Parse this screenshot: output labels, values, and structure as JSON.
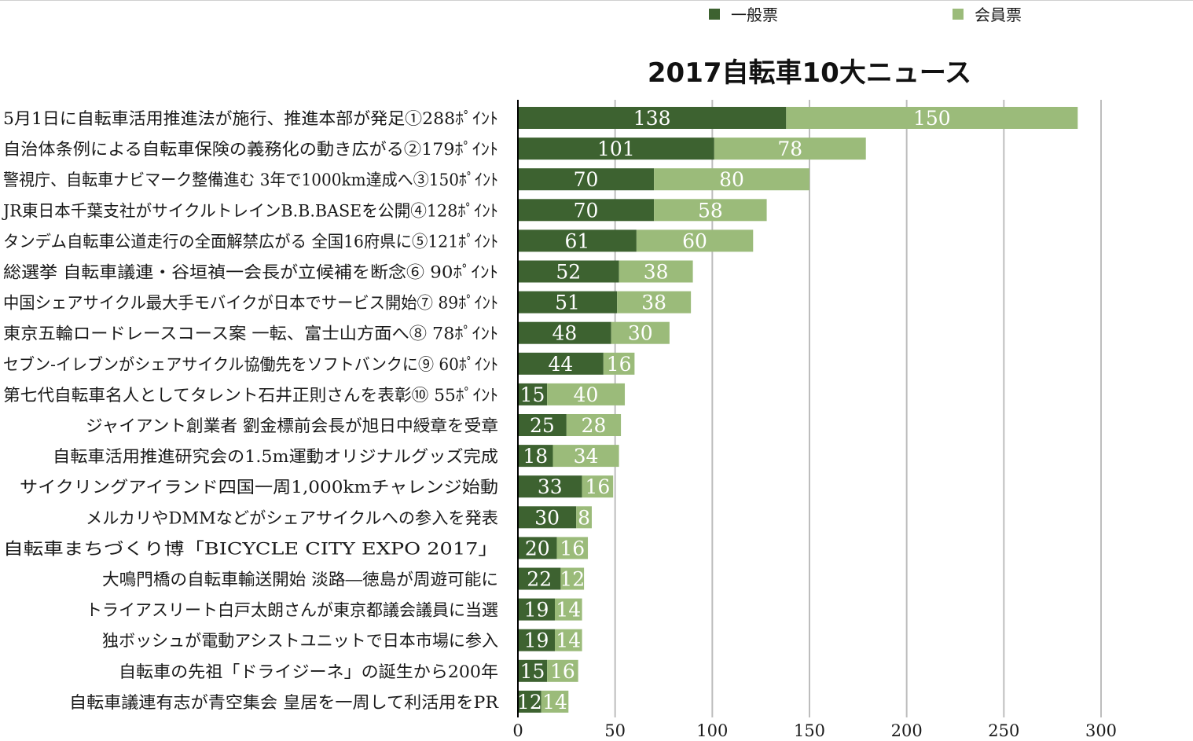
{
  "legend": {
    "general_label": "一般票",
    "member_label": "会員票"
  },
  "colors": {
    "general": "#3d6230",
    "member": "#9bbb7a",
    "grid": "#bdbdbd",
    "axis": "#000000"
  },
  "chart_data": {
    "type": "bar",
    "orientation": "horizontal",
    "stacked": true,
    "title": "2017自転車10大ニュース",
    "categories": [
      "5月1日に自転車活用推進法が施行、推進本部が発足①288ﾎﾟｲﾝﾄ",
      "自治体条例による自転車保険の義務化の動き広がる②179ﾎﾟｲﾝﾄ",
      "警視庁、自転車ナビマーク整備進む 3年で1000km達成へ③150ﾎﾟｲﾝﾄ",
      "JR東日本千葉支社がサイクルトレインB.B.BASEを公開④128ﾎﾟｲﾝﾄ",
      "タンデム自転車公道走行の全面解禁広がる 全国16府県に⑤121ﾎﾟｲﾝﾄ",
      "総選挙 自転車議連・谷垣禎一会長が立候補を断念⑥ 90ﾎﾟｲﾝﾄ",
      "中国シェアサイクル最大手モバイクが日本でサービス開始⑦ 89ﾎﾟｲﾝﾄ",
      "東京五輪ロードレースコース案 一転、富士山方面へ⑧ 78ﾎﾟｲﾝﾄ",
      "セブン‐イレブンがシェアサイクル協働先をソフトバンクに⑨ 60ﾎﾟｲﾝﾄ",
      "第七代自転車名人としてタレント石井正則さんを表彰⑩ 55ﾎﾟｲﾝﾄ",
      "ジャイアント創業者 劉金標前会長が旭日中綬章を受章",
      "自転車活用推進研究会の1.5m運動オリジナルグッズ完成",
      "サイクリングアイランド四国一周1,000kmチャレンジ始動",
      "メルカリやDMMなどがシェアサイクルへの参入を発表",
      "自転車まちづくり博「BICYCLE CITY EXPO 2017」",
      "大鳴門橋の自転車輸送開始 淡路―徳島が周遊可能に",
      "トライアスリート白戸太朗さんが東京都議会議員に当選",
      "独ボッシュが電動アシストユニットで日本市場に参入",
      "自転車の先祖「ドライジーネ」の誕生から200年",
      "自転車議連有志が青空集会 皇居を一周して利活用をPR"
    ],
    "series": [
      {
        "name": "一般票",
        "values": [
          138,
          101,
          70,
          70,
          61,
          52,
          51,
          48,
          44,
          15,
          25,
          18,
          33,
          30,
          20,
          22,
          19,
          19,
          15,
          12
        ]
      },
      {
        "name": "会員票",
        "values": [
          150,
          78,
          80,
          58,
          60,
          38,
          38,
          30,
          16,
          40,
          28,
          34,
          16,
          8,
          16,
          12,
          14,
          14,
          16,
          14
        ]
      }
    ],
    "xlim": [
      0,
      300
    ],
    "xticks": [
      0,
      50,
      100,
      150,
      200,
      250,
      300
    ],
    "grid": true,
    "legend_position": "top"
  }
}
